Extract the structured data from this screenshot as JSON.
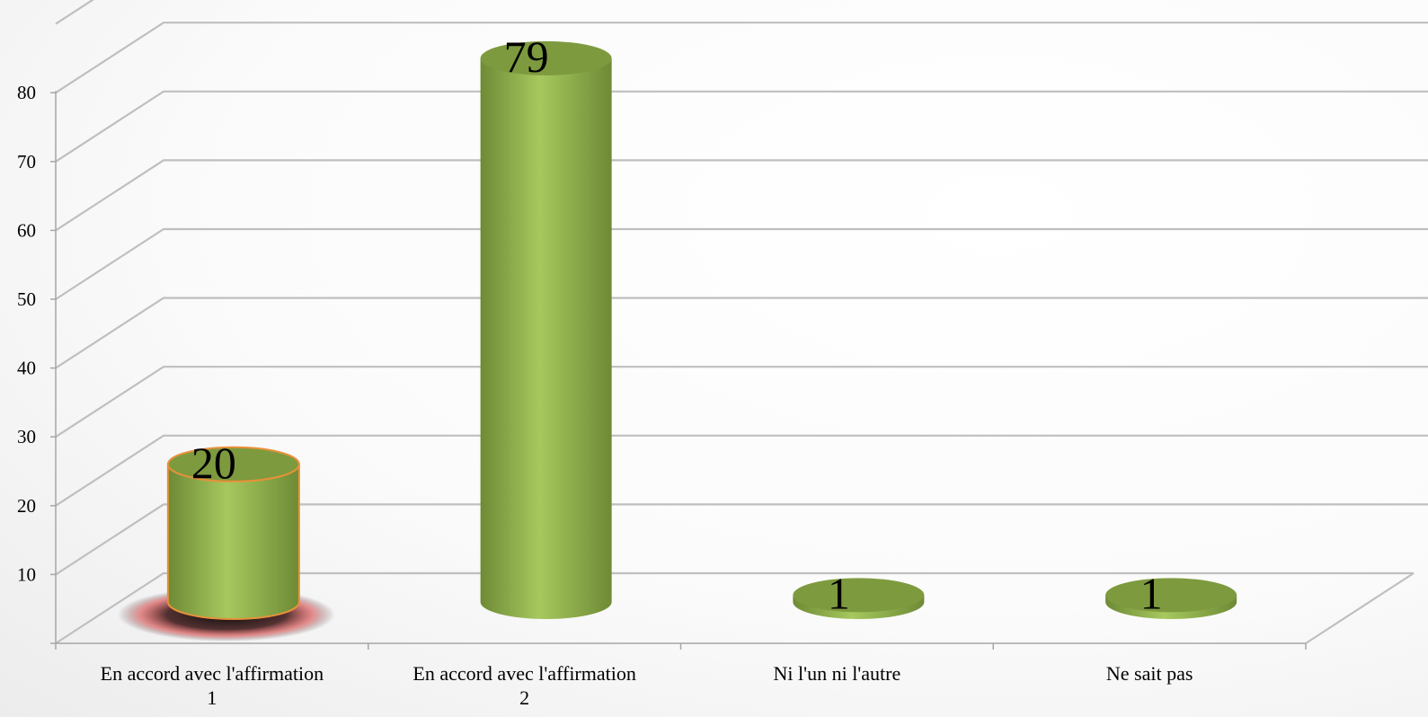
{
  "chart_data": {
    "type": "bar",
    "bar_shape": "3d-cylinder",
    "categories": [
      "En accord avec l'affirmation\n1",
      "En accord avec l'affirmation\n2",
      "Ni l'un ni l'autre",
      "Ne sait pas"
    ],
    "values": [
      20,
      79,
      1,
      1
    ],
    "data_labels": [
      "20",
      "79",
      "1",
      "1"
    ],
    "y_ticks": [
      "10",
      "20",
      "30",
      "40",
      "50",
      "60",
      "70",
      "80"
    ],
    "ylim": [
      0,
      80
    ],
    "grid": true,
    "legend": "none",
    "title": "",
    "xlabel": "",
    "ylabel": "",
    "colors": {
      "bar_light": "#a6c85e",
      "bar_dark": "#6e8a35",
      "bar_top": "#7e9a3f",
      "highlight_outline": "#e8913a",
      "gridline": "#bfbfbf",
      "axis": "#a6a6a6",
      "text": "#000000"
    }
  }
}
